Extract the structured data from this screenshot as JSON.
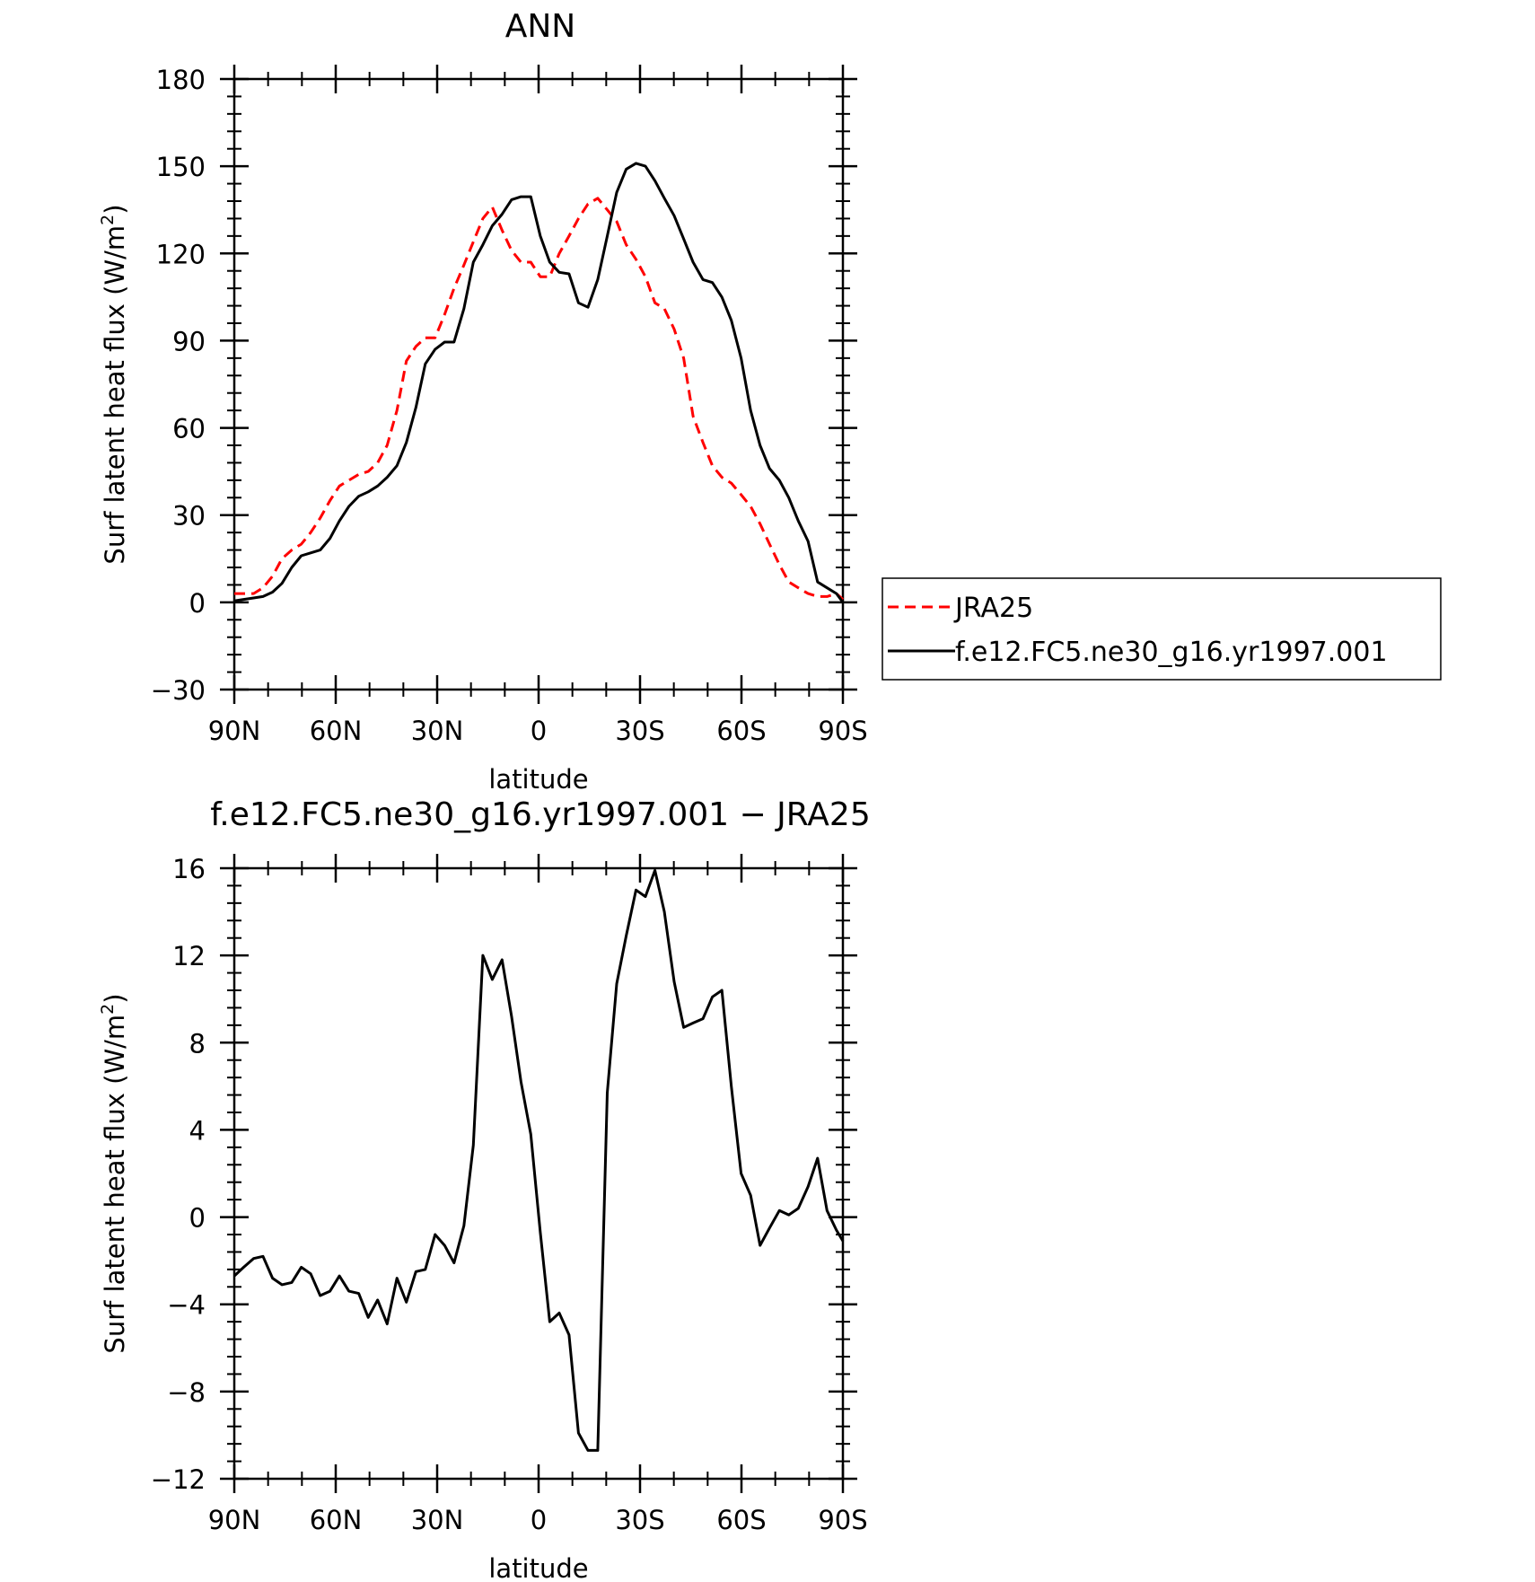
{
  "chart_data": [
    {
      "type": "line",
      "title": "ANN",
      "xlabel": "latitude",
      "ylabel": "Surf latent heat flux (W/m",
      "ylabel_sup": "2",
      "ylabel_end": ")",
      "xlim": [
        90,
        -90
      ],
      "ylim": [
        -30,
        180
      ],
      "xticks": [
        90,
        60,
        30,
        0,
        -30,
        -60,
        -90
      ],
      "xtick_labels": [
        "90N",
        "60N",
        "30N",
        "0",
        "30S",
        "60S",
        "90S"
      ],
      "yticks": [
        -30,
        0,
        30,
        60,
        90,
        120,
        150,
        180
      ],
      "ytick_labels": [
        "−30",
        "0",
        "30",
        "60",
        "90",
        "120",
        "150",
        "180"
      ],
      "grid": false,
      "legend_position": "right, outside plot",
      "series": [
        {
          "name": "JRA25",
          "color": "#ff0000",
          "dash": "dashed",
          "x": [
            90,
            87.2,
            84.3,
            81.5,
            78.7,
            75.9,
            73.0,
            70.2,
            67.4,
            64.6,
            61.7,
            58.9,
            56.1,
            53.2,
            50.4,
            47.6,
            44.8,
            41.9,
            39.1,
            36.3,
            33.5,
            30.6,
            27.8,
            25.0,
            22.1,
            19.3,
            16.5,
            13.7,
            10.8,
            8.0,
            5.2,
            2.3,
            -0.5,
            -3.3,
            -6.1,
            -9.0,
            -11.8,
            -14.6,
            -17.5,
            -20.3,
            -23.1,
            -25.9,
            -28.8,
            -31.6,
            -34.4,
            -37.2,
            -40.1,
            -42.9,
            -45.7,
            -48.6,
            -51.4,
            -54.2,
            -57.0,
            -59.9,
            -62.7,
            -65.5,
            -68.3,
            -71.2,
            -74.0,
            -76.8,
            -79.7,
            -82.5,
            -85.3,
            -88.1,
            -90
          ],
          "values": [
            3,
            3,
            3,
            5,
            9,
            15,
            18,
            20,
            24,
            29,
            35,
            40,
            42,
            44,
            45,
            48,
            54,
            66,
            83,
            88,
            91,
            91,
            99,
            108,
            116,
            124,
            132,
            136,
            128,
            121,
            117,
            117,
            112,
            112,
            120,
            126,
            132,
            137,
            139,
            135,
            131,
            123,
            118,
            112,
            103,
            101,
            94,
            84,
            64,
            55,
            47,
            43,
            41,
            37,
            33,
            27,
            20,
            13,
            7,
            5,
            3,
            2,
            2,
            3,
            1
          ]
        },
        {
          "name": "f.e12.FC5.ne30_g16.yr1997.001",
          "color": "#000000",
          "dash": "solid",
          "x": [
            90,
            87.2,
            84.3,
            81.5,
            78.7,
            75.9,
            73.0,
            70.2,
            67.4,
            64.6,
            61.7,
            58.9,
            56.1,
            53.2,
            50.4,
            47.6,
            44.8,
            41.9,
            39.1,
            36.3,
            33.5,
            30.6,
            27.8,
            25.0,
            22.1,
            19.3,
            16.5,
            13.7,
            10.8,
            8.0,
            5.2,
            2.3,
            -0.5,
            -3.3,
            -6.1,
            -9.0,
            -11.8,
            -14.6,
            -17.5,
            -20.3,
            -23.1,
            -25.9,
            -28.8,
            -31.6,
            -34.4,
            -37.2,
            -40.1,
            -42.9,
            -45.7,
            -48.6,
            -51.4,
            -54.2,
            -57.0,
            -59.9,
            -62.7,
            -65.5,
            -68.3,
            -71.2,
            -74.0,
            -76.8,
            -79.7,
            -82.5,
            -85.3,
            -88.1,
            -90
          ],
          "values": [
            0.5,
            1,
            1.5,
            2,
            3.5,
            6.5,
            12,
            16,
            17,
            18,
            22,
            28,
            33,
            36.5,
            38,
            40,
            43,
            47,
            55,
            67,
            82,
            87,
            89.5,
            89.5,
            101,
            117,
            123,
            129.5,
            133.5,
            138.5,
            139.5,
            139.5,
            126,
            117,
            113.5,
            113,
            103,
            101.5,
            111,
            126,
            141,
            149,
            151,
            150,
            145,
            139,
            133,
            125,
            117,
            111,
            110,
            105,
            97,
            84,
            66,
            54,
            46,
            42,
            36,
            28,
            21,
            7,
            5,
            3,
            0
          ]
        }
      ]
    },
    {
      "type": "line",
      "title": "f.e12.FC5.ne30_g16.yr1997.001 − JRA25",
      "xlabel": "latitude",
      "ylabel": "Surf latent heat flux (W/m",
      "ylabel_sup": "2",
      "ylabel_end": ")",
      "xlim": [
        90,
        -90
      ],
      "ylim": [
        -12,
        16
      ],
      "xticks": [
        90,
        60,
        30,
        0,
        -30,
        -60,
        -90
      ],
      "xtick_labels": [
        "90N",
        "60N",
        "30N",
        "0",
        "30S",
        "60S",
        "90S"
      ],
      "yticks": [
        -12,
        -8,
        -4,
        0,
        4,
        8,
        12,
        16
      ],
      "ytick_labels": [
        "−12",
        "−8",
        "−4",
        "0",
        "4",
        "8",
        "12",
        "16"
      ],
      "grid": false,
      "series": [
        {
          "color": "#000000",
          "dash": "solid",
          "x": [
            90,
            87.2,
            84.3,
            81.5,
            78.7,
            75.9,
            73.0,
            70.2,
            67.4,
            64.6,
            61.7,
            58.9,
            56.1,
            53.2,
            50.4,
            47.6,
            44.8,
            41.9,
            39.1,
            36.3,
            33.5,
            30.6,
            27.8,
            25.0,
            22.1,
            19.3,
            16.5,
            13.7,
            10.8,
            8.0,
            5.2,
            2.3,
            -0.5,
            -3.3,
            -6.1,
            -9.0,
            -11.8,
            -14.6,
            -17.5,
            -20.3,
            -23.1,
            -25.9,
            -28.8,
            -31.6,
            -34.4,
            -37.2,
            -40.1,
            -42.9,
            -45.7,
            -48.6,
            -51.4,
            -54.2,
            -57.0,
            -59.9,
            -62.7,
            -65.5,
            -68.3,
            -71.2,
            -74.0,
            -76.8,
            -79.7,
            -82.5,
            -85.3,
            -88.1,
            -90
          ],
          "values": [
            -2.7,
            -2.3,
            -1.9,
            -1.8,
            -2.8,
            -3.1,
            -3.0,
            -2.3,
            -2.6,
            -3.6,
            -3.4,
            -2.7,
            -3.4,
            -3.5,
            -4.6,
            -3.8,
            -4.9,
            -2.8,
            -3.9,
            -2.5,
            -2.4,
            -0.8,
            -1.3,
            -2.1,
            -0.4,
            3.3,
            12.0,
            10.9,
            11.8,
            9.2,
            6.2,
            3.8,
            -0.7,
            -4.8,
            -4.4,
            -5.4,
            -9.9,
            -10.7,
            -10.7,
            5.7,
            10.7,
            12.9,
            15.0,
            14.7,
            15.9,
            14.0,
            10.8,
            8.7,
            8.9,
            9.1,
            10.1,
            10.4,
            6.0,
            2.0,
            1.0,
            -1.3,
            -0.5,
            0.3,
            0.1,
            0.4,
            1.4,
            2.7,
            0.3,
            -0.6,
            -1.1
          ]
        }
      ]
    }
  ]
}
